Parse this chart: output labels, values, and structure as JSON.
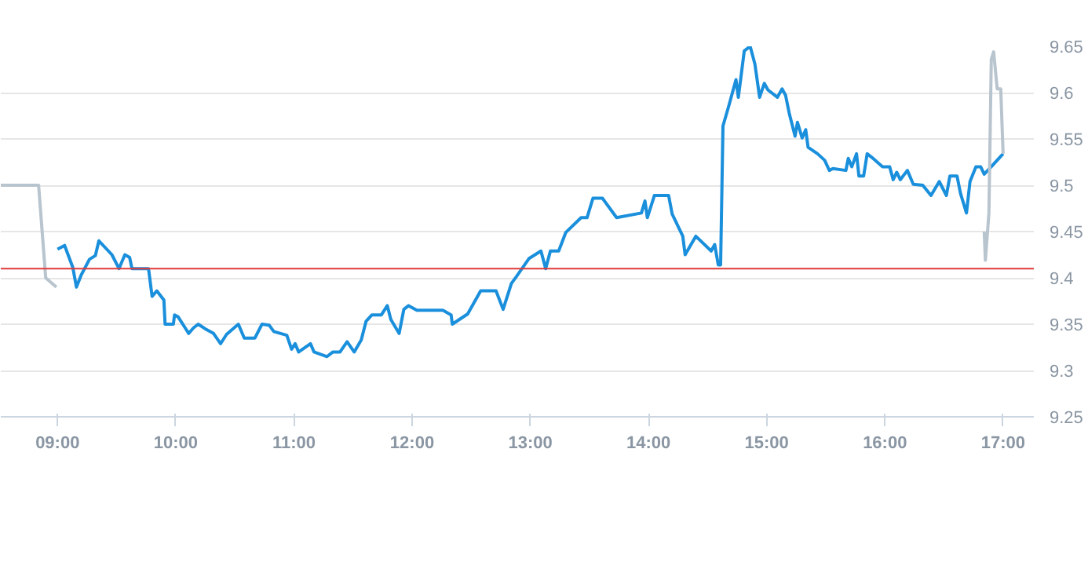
{
  "chart_data": {
    "type": "line",
    "xlim": [
      8.52,
      17.26
    ],
    "ylim": [
      9.25,
      9.65
    ],
    "xticks": [
      {
        "value": 9,
        "label": "09:00"
      },
      {
        "value": 10,
        "label": "10:00"
      },
      {
        "value": 11,
        "label": "11:00"
      },
      {
        "value": 12,
        "label": "12:00"
      },
      {
        "value": 13,
        "label": "13:00"
      },
      {
        "value": 14,
        "label": "14:00"
      },
      {
        "value": 15,
        "label": "15:00"
      },
      {
        "value": 16,
        "label": "16:00"
      },
      {
        "value": 17,
        "label": "17:00"
      }
    ],
    "yticks": [
      9.25,
      9.3,
      9.35,
      9.4,
      9.45,
      9.5,
      9.55,
      9.6,
      9.65
    ],
    "grid": "y",
    "marker": "none",
    "line_style": "solid",
    "ref_lines": [
      {
        "axis": "y",
        "value": 9.41,
        "color": "#e03a3a"
      }
    ],
    "series": [
      {
        "color": "#b8c4ce",
        "x": [
          8.52,
          8.84,
          8.9,
          8.99
        ],
        "values": [
          9.5,
          9.5,
          9.4,
          9.39
        ]
      },
      {
        "color": "#1a8fdc",
        "x": [
          9.0,
          9.06,
          9.13,
          9.16,
          9.2,
          9.27,
          9.32,
          9.35,
          9.46,
          9.52,
          9.57,
          9.61,
          9.63,
          9.77,
          9.8,
          9.84,
          9.9,
          9.91,
          9.98,
          9.99,
          10.02,
          10.08,
          10.11,
          10.15,
          10.19,
          10.25,
          10.32,
          10.38,
          10.43,
          10.53,
          10.58,
          10.67,
          10.73,
          10.79,
          10.83,
          10.94,
          10.98,
          11.01,
          11.04,
          11.14,
          11.17,
          11.28,
          11.33,
          11.39,
          11.45,
          11.51,
          11.57,
          11.61,
          11.66,
          11.74,
          11.79,
          11.82,
          11.89,
          11.93,
          11.97,
          12.04,
          12.26,
          12.33,
          12.34,
          12.47,
          12.58,
          12.71,
          12.77,
          12.84,
          12.88,
          12.99,
          13.09,
          13.13,
          13.17,
          13.24,
          13.3,
          13.43,
          13.48,
          13.53,
          13.61,
          13.73,
          13.94,
          13.97,
          13.99,
          14.05,
          14.17,
          14.2,
          14.29,
          14.31,
          14.4,
          14.53,
          14.56,
          14.59,
          14.61,
          14.63,
          14.68,
          14.74,
          14.76,
          14.81,
          14.86,
          14.9,
          14.94,
          14.98,
          15.01,
          15.09,
          15.13,
          15.16,
          15.19,
          15.24,
          15.26,
          15.3,
          15.33,
          15.35,
          15.43,
          15.49,
          15.53,
          15.56,
          15.67,
          15.69,
          15.72,
          15.76,
          15.78,
          15.82,
          15.85,
          15.89,
          15.98,
          16.04,
          16.07,
          16.1,
          16.13,
          16.19,
          16.24,
          16.32,
          16.39,
          16.46,
          16.52,
          16.55,
          16.61,
          16.64,
          16.69,
          16.72,
          16.77,
          16.81,
          16.84,
          16.9,
          17.0
        ],
        "values": [
          9.431,
          9.435,
          9.411,
          9.39,
          9.403,
          9.42,
          9.424,
          9.44,
          9.425,
          9.41,
          9.425,
          9.422,
          9.41,
          9.41,
          9.38,
          9.386,
          9.376,
          9.35,
          9.35,
          9.36,
          9.358,
          9.346,
          9.34,
          9.346,
          9.35,
          9.345,
          9.34,
          9.329,
          9.339,
          9.35,
          9.335,
          9.335,
          9.35,
          9.349,
          9.342,
          9.338,
          9.323,
          9.329,
          9.32,
          9.329,
          9.32,
          9.315,
          9.32,
          9.32,
          9.331,
          9.32,
          9.333,
          9.353,
          9.36,
          9.36,
          9.37,
          9.355,
          9.34,
          9.366,
          9.37,
          9.365,
          9.365,
          9.36,
          9.35,
          9.361,
          9.386,
          9.386,
          9.366,
          9.394,
          9.401,
          9.421,
          9.429,
          9.41,
          9.429,
          9.429,
          9.449,
          9.465,
          9.465,
          9.486,
          9.486,
          9.465,
          9.47,
          9.483,
          9.465,
          9.489,
          9.489,
          9.469,
          9.445,
          9.425,
          9.445,
          9.429,
          9.436,
          9.414,
          9.414,
          9.564,
          9.586,
          9.614,
          9.595,
          9.645,
          9.65,
          9.631,
          9.595,
          9.61,
          9.603,
          9.595,
          9.604,
          9.597,
          9.578,
          9.553,
          9.568,
          9.551,
          9.56,
          9.541,
          9.534,
          9.527,
          9.516,
          9.518,
          9.516,
          9.529,
          9.52,
          9.534,
          9.51,
          9.51,
          9.534,
          9.53,
          9.52,
          9.52,
          9.506,
          9.514,
          9.506,
          9.516,
          9.501,
          9.5,
          9.489,
          9.504,
          9.489,
          9.51,
          9.51,
          9.491,
          9.47,
          9.504,
          9.52,
          9.52,
          9.512,
          9.52,
          9.534
        ]
      },
      {
        "color": "#b8c4ce",
        "x": [
          16.84,
          16.85,
          16.88,
          16.9,
          16.92,
          16.95,
          16.98,
          17.0
        ],
        "values": [
          9.45,
          9.419,
          9.47,
          9.636,
          9.644,
          9.604,
          9.604,
          9.534
        ]
      }
    ]
  }
}
